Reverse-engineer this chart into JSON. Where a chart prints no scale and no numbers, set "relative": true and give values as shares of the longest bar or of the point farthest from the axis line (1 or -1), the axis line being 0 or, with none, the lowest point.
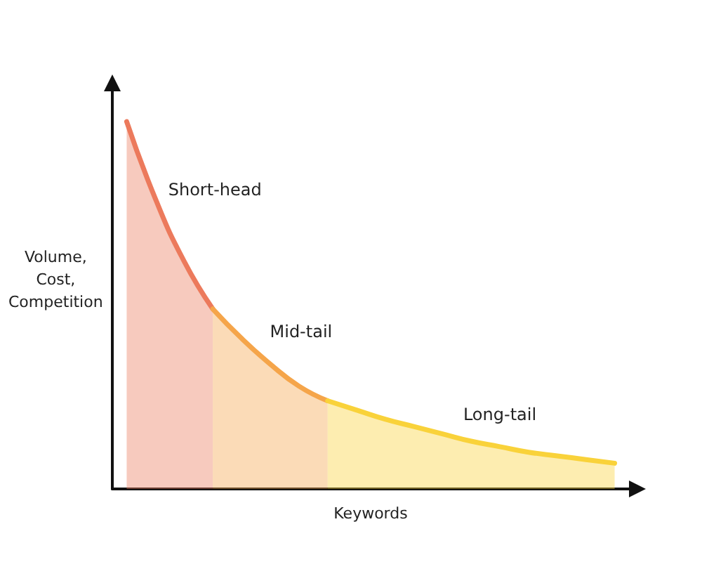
{
  "chart_data": {
    "type": "area",
    "relative": true,
    "xlabel": "Keywords",
    "ylabel": "Volume,\nCost,\nCompetition",
    "legend": false,
    "grid": false,
    "categories": [
      null,
      null,
      null,
      null,
      null,
      null,
      null,
      null,
      null,
      null,
      null,
      null,
      null,
      null,
      null,
      null,
      null,
      null
    ],
    "series": [
      {
        "name": "Short-head",
        "color": "#ec7a5c",
        "values": [
          1,
          0.79,
          0.62,
          0.49,
          null,
          null,
          null,
          null,
          null,
          null,
          null,
          null,
          null,
          null,
          null,
          null,
          null,
          null
        ]
      },
      {
        "name": "Mid-tail",
        "color": "#f5a54a",
        "values": [
          null,
          null,
          null,
          0.49,
          0.41,
          0.34,
          0.28,
          0.24,
          null,
          null,
          null,
          null,
          null,
          null,
          null,
          null,
          null,
          null
        ]
      },
      {
        "name": "Long-tail",
        "color": "#f9d23a",
        "values": [
          null,
          null,
          null,
          null,
          null,
          null,
          null,
          0.24,
          0.215,
          0.19,
          0.17,
          0.15,
          0.13,
          0.115,
          0.1,
          0.09,
          0.08,
          0.07
        ]
      }
    ]
  }
}
